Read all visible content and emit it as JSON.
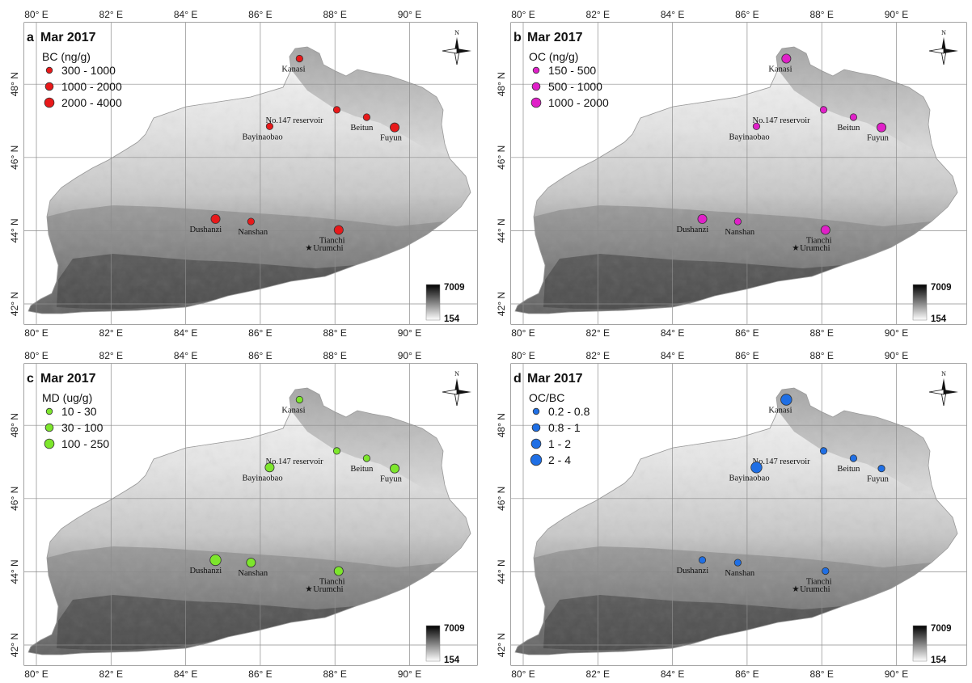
{
  "panels": [
    {
      "letter": "a",
      "date": "Mar 2017",
      "legend_title": "BC (ng/g)",
      "color": "#e8191a",
      "legend": [
        "300 - 1000",
        "1000 - 2000",
        "2000 - 4000"
      ],
      "sites": [
        {
          "name": "Kanasi",
          "lon": 87.05,
          "lat": 48.7,
          "class": 0
        },
        {
          "name": "No.147 reservoir",
          "lon": 88.05,
          "lat": 47.3,
          "class": 0
        },
        {
          "name": "Beitun",
          "lon": 88.85,
          "lat": 47.1,
          "class": 0
        },
        {
          "name": "Bayinaobao",
          "lon": 86.25,
          "lat": 46.85,
          "class": 0
        },
        {
          "name": "Fuyun",
          "lon": 89.6,
          "lat": 46.82,
          "class": 1
        },
        {
          "name": "Dushanzi",
          "lon": 84.8,
          "lat": 44.32,
          "class": 1
        },
        {
          "name": "Nanshan",
          "lon": 85.75,
          "lat": 44.25,
          "class": 0
        },
        {
          "name": "Tianchi",
          "lon": 88.1,
          "lat": 44.02,
          "class": 1
        }
      ]
    },
    {
      "letter": "b",
      "date": "Mar 2017",
      "legend_title": "OC (ng/g)",
      "color": "#e020c8",
      "legend": [
        "150 - 500",
        "500 - 1000",
        "1000 - 2000"
      ],
      "sites": [
        {
          "name": "Kanasi",
          "lon": 87.05,
          "lat": 48.7,
          "class": 1
        },
        {
          "name": "No.147 reservoir",
          "lon": 88.05,
          "lat": 47.3,
          "class": 0
        },
        {
          "name": "Beitun",
          "lon": 88.85,
          "lat": 47.1,
          "class": 0
        },
        {
          "name": "Bayinaobao",
          "lon": 86.25,
          "lat": 46.85,
          "class": 0
        },
        {
          "name": "Fuyun",
          "lon": 89.6,
          "lat": 46.82,
          "class": 1
        },
        {
          "name": "Dushanzi",
          "lon": 84.8,
          "lat": 44.32,
          "class": 1
        },
        {
          "name": "Nanshan",
          "lon": 85.75,
          "lat": 44.25,
          "class": 0
        },
        {
          "name": "Tianchi",
          "lon": 88.1,
          "lat": 44.02,
          "class": 1
        }
      ]
    },
    {
      "letter": "c",
      "date": "Mar 2017",
      "legend_title": "MD (ug/g)",
      "color": "#7de62c",
      "legend": [
        "10 - 30",
        "30 - 100",
        "100 - 250"
      ],
      "sites": [
        {
          "name": "Kanasi",
          "lon": 87.05,
          "lat": 48.7,
          "class": 0
        },
        {
          "name": "No.147 reservoir",
          "lon": 88.05,
          "lat": 47.3,
          "class": 0
        },
        {
          "name": "Beitun",
          "lon": 88.85,
          "lat": 47.1,
          "class": 0
        },
        {
          "name": "Bayinaobao",
          "lon": 86.25,
          "lat": 46.85,
          "class": 1
        },
        {
          "name": "Fuyun",
          "lon": 89.6,
          "lat": 46.82,
          "class": 1
        },
        {
          "name": "Dushanzi",
          "lon": 84.8,
          "lat": 44.32,
          "class": 2
        },
        {
          "name": "Nanshan",
          "lon": 85.75,
          "lat": 44.25,
          "class": 1
        },
        {
          "name": "Tianchi",
          "lon": 88.1,
          "lat": 44.02,
          "class": 1
        }
      ]
    },
    {
      "letter": "d",
      "date": "Mar 2017",
      "legend_title": "OC/BC",
      "color": "#1f6fe5",
      "legend": [
        "0.2 - 0.8",
        "0.8 - 1",
        "1 - 2",
        "2 - 4"
      ],
      "sites": [
        {
          "name": "Kanasi",
          "lon": 87.05,
          "lat": 48.7,
          "class": 2
        },
        {
          "name": "No.147 reservoir",
          "lon": 88.05,
          "lat": 47.3,
          "class": 0
        },
        {
          "name": "Beitun",
          "lon": 88.85,
          "lat": 47.1,
          "class": 0
        },
        {
          "name": "Bayinaobao",
          "lon": 86.25,
          "lat": 46.85,
          "class": 2
        },
        {
          "name": "Fuyun",
          "lon": 89.6,
          "lat": 46.82,
          "class": 0
        },
        {
          "name": "Dushanzi",
          "lon": 84.8,
          "lat": 44.32,
          "class": 0
        },
        {
          "name": "Nanshan",
          "lon": 85.75,
          "lat": 44.25,
          "class": 0
        },
        {
          "name": "Tianchi",
          "lon": 88.1,
          "lat": 44.02,
          "class": 0
        }
      ]
    }
  ],
  "reference_point": {
    "name": "Urumchi",
    "symbol": "★",
    "lon": 87.35,
    "lat": 43.55
  },
  "lon_ticks": [
    "80° E",
    "82° E",
    "84° E",
    "86° E",
    "88° E",
    "90° E"
  ],
  "lat_ticks": [
    "42° N",
    "44° N",
    "46° N",
    "48° N"
  ],
  "elevation_scale": {
    "max": "7009",
    "min": "154"
  },
  "compass_label": "N",
  "colors": {
    "background": "#ffffff",
    "grid": "#8c8c8c",
    "terrain_dark": "#2b2b2b",
    "terrain_light": "#f4f4f4"
  }
}
